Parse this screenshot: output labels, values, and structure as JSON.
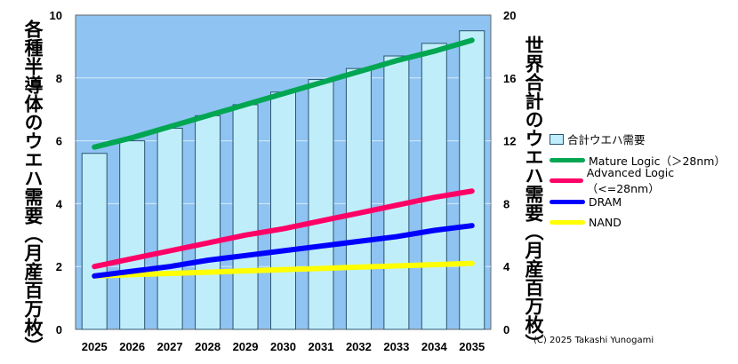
{
  "chart_data": {
    "type": "bar+line",
    "categories": [
      "2025",
      "2026",
      "2027",
      "2028",
      "2029",
      "2030",
      "2031",
      "2032",
      "2033",
      "2034",
      "2035"
    ],
    "ylabel_left": "各種半導体のウエハ需要（月産百万枚）",
    "ylabel_right": "世界合計のウエハ需要（月産百万枚）",
    "ylim_left": [
      0,
      10
    ],
    "yticks_left": [
      "0",
      "2",
      "4",
      "6",
      "8",
      "10"
    ],
    "ylim_right": [
      0,
      20
    ],
    "yticks_right": [
      "0",
      "4",
      "8",
      "12",
      "16",
      "20"
    ],
    "bar_series": {
      "name": "合計ウエハ需要",
      "axis": "right",
      "color": "#bfeefa",
      "values": [
        11.2,
        12.0,
        12.8,
        13.6,
        14.3,
        15.1,
        15.9,
        16.6,
        17.4,
        18.2,
        19.0
      ]
    },
    "series": [
      {
        "name": "Mature Logic（＞28nm）",
        "axis": "left",
        "color": "#00a651",
        "values": [
          5.8,
          6.1,
          6.45,
          6.8,
          7.15,
          7.5,
          7.85,
          8.2,
          8.55,
          8.85,
          9.2
        ]
      },
      {
        "name": "Advanced Logic（<=28nm）",
        "axis": "left",
        "color": "#ff0066",
        "values": [
          2.0,
          2.25,
          2.5,
          2.75,
          3.0,
          3.2,
          3.45,
          3.7,
          3.95,
          4.2,
          4.4
        ]
      },
      {
        "name": "DRAM",
        "axis": "left",
        "color": "#0000ff",
        "values": [
          1.7,
          1.85,
          2.0,
          2.2,
          2.35,
          2.5,
          2.65,
          2.8,
          2.95,
          3.15,
          3.3
        ]
      },
      {
        "name": "NAND",
        "axis": "left",
        "color": "#ffff00",
        "values": [
          1.7,
          1.74,
          1.78,
          1.82,
          1.86,
          1.9,
          1.94,
          1.98,
          2.02,
          2.06,
          2.1
        ]
      }
    ],
    "grid": true,
    "legend": "right",
    "colors": {
      "plot_bg": "#8fc3f2",
      "bar_fill": "#bfeefa"
    }
  },
  "copyright": "(C) 2025 Takashi Yunogami"
}
